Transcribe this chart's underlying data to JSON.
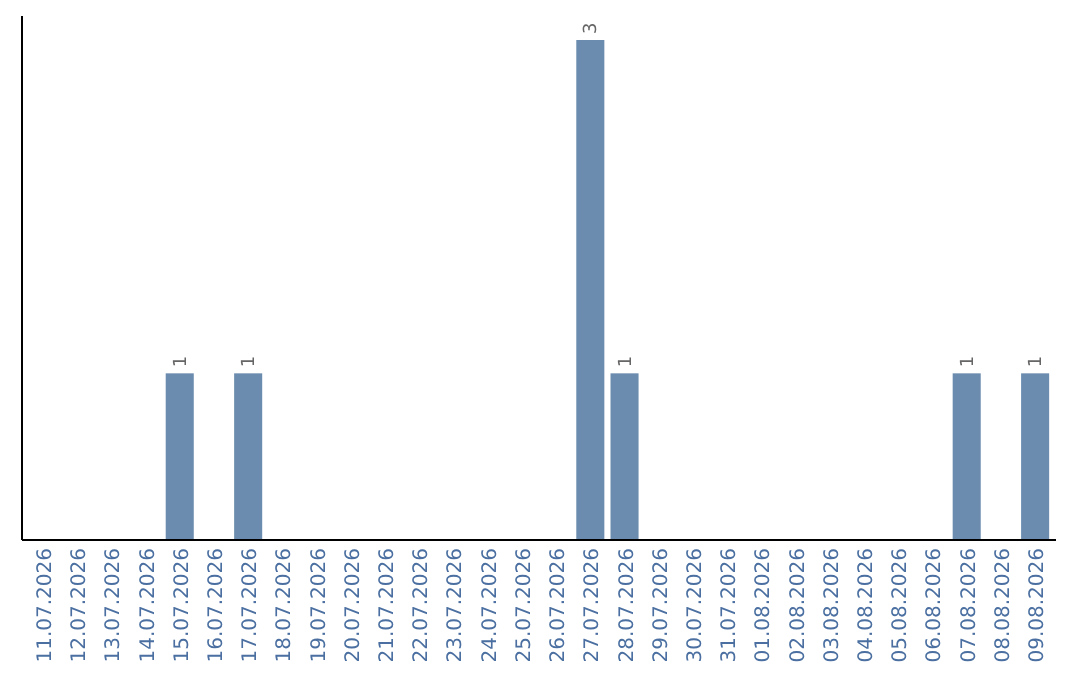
{
  "chart_data": {
    "type": "bar",
    "categories": [
      "11.07.2026",
      "12.07.2026",
      "13.07.2026",
      "14.07.2026",
      "15.07.2026",
      "16.07.2026",
      "17.07.2026",
      "18.07.2026",
      "19.07.2026",
      "20.07.2026",
      "21.07.2026",
      "22.07.2026",
      "23.07.2026",
      "24.07.2026",
      "25.07.2026",
      "26.07.2026",
      "27.07.2026",
      "28.07.2026",
      "29.07.2026",
      "30.07.2026",
      "31.07.2026",
      "01.08.2026",
      "02.08.2026",
      "03.08.2026",
      "04.08.2026",
      "05.08.2026",
      "06.08.2026",
      "07.08.2026",
      "08.08.2026",
      "09.08.2026"
    ],
    "values": [
      0,
      0,
      0,
      0,
      1,
      0,
      1,
      0,
      0,
      0,
      0,
      0,
      0,
      0,
      0,
      0,
      3,
      1,
      0,
      0,
      0,
      0,
      0,
      0,
      0,
      0,
      0,
      1,
      0,
      1
    ],
    "value_labels": [
      null,
      null,
      null,
      null,
      "1",
      null,
      "1",
      null,
      null,
      null,
      null,
      null,
      null,
      null,
      null,
      null,
      "3",
      "1",
      null,
      null,
      null,
      null,
      null,
      null,
      null,
      null,
      null,
      "1",
      null,
      "1"
    ],
    "color": "#6b8cae",
    "ylim": [
      0,
      3
    ],
    "tick_labels": "x"
  }
}
